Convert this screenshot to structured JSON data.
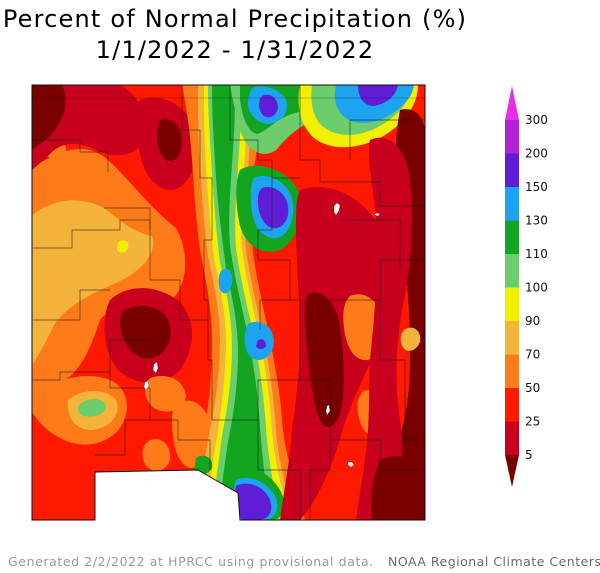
{
  "title": {
    "line1": "Percent of Normal Precipitation (%)",
    "line2": "1/1/2022 - 1/31/2022"
  },
  "legend": {
    "bins": [
      {
        "label": "5",
        "color": "#7a0000"
      },
      {
        "label": "25",
        "color": "#c8001e"
      },
      {
        "label": "50",
        "color": "#ff1900"
      },
      {
        "label": "70",
        "color": "#ff7b1a"
      },
      {
        "label": "90",
        "color": "#f4b43b"
      },
      {
        "label": "100",
        "color": "#f2ef00"
      },
      {
        "label": "110",
        "color": "#6ccd6c"
      },
      {
        "label": "130",
        "color": "#13a51f"
      },
      {
        "label": "150",
        "color": "#1da4f0"
      },
      {
        "label": "200",
        "color": "#5f1dd7"
      },
      {
        "label": "300",
        "color": "#b322d6"
      }
    ],
    "top_color": "#ea2dea"
  },
  "footer": {
    "generated": "Generated 2/2/2022 at HPRCC using provisional data.",
    "credit": "NOAA Regional Climate Centers"
  }
}
